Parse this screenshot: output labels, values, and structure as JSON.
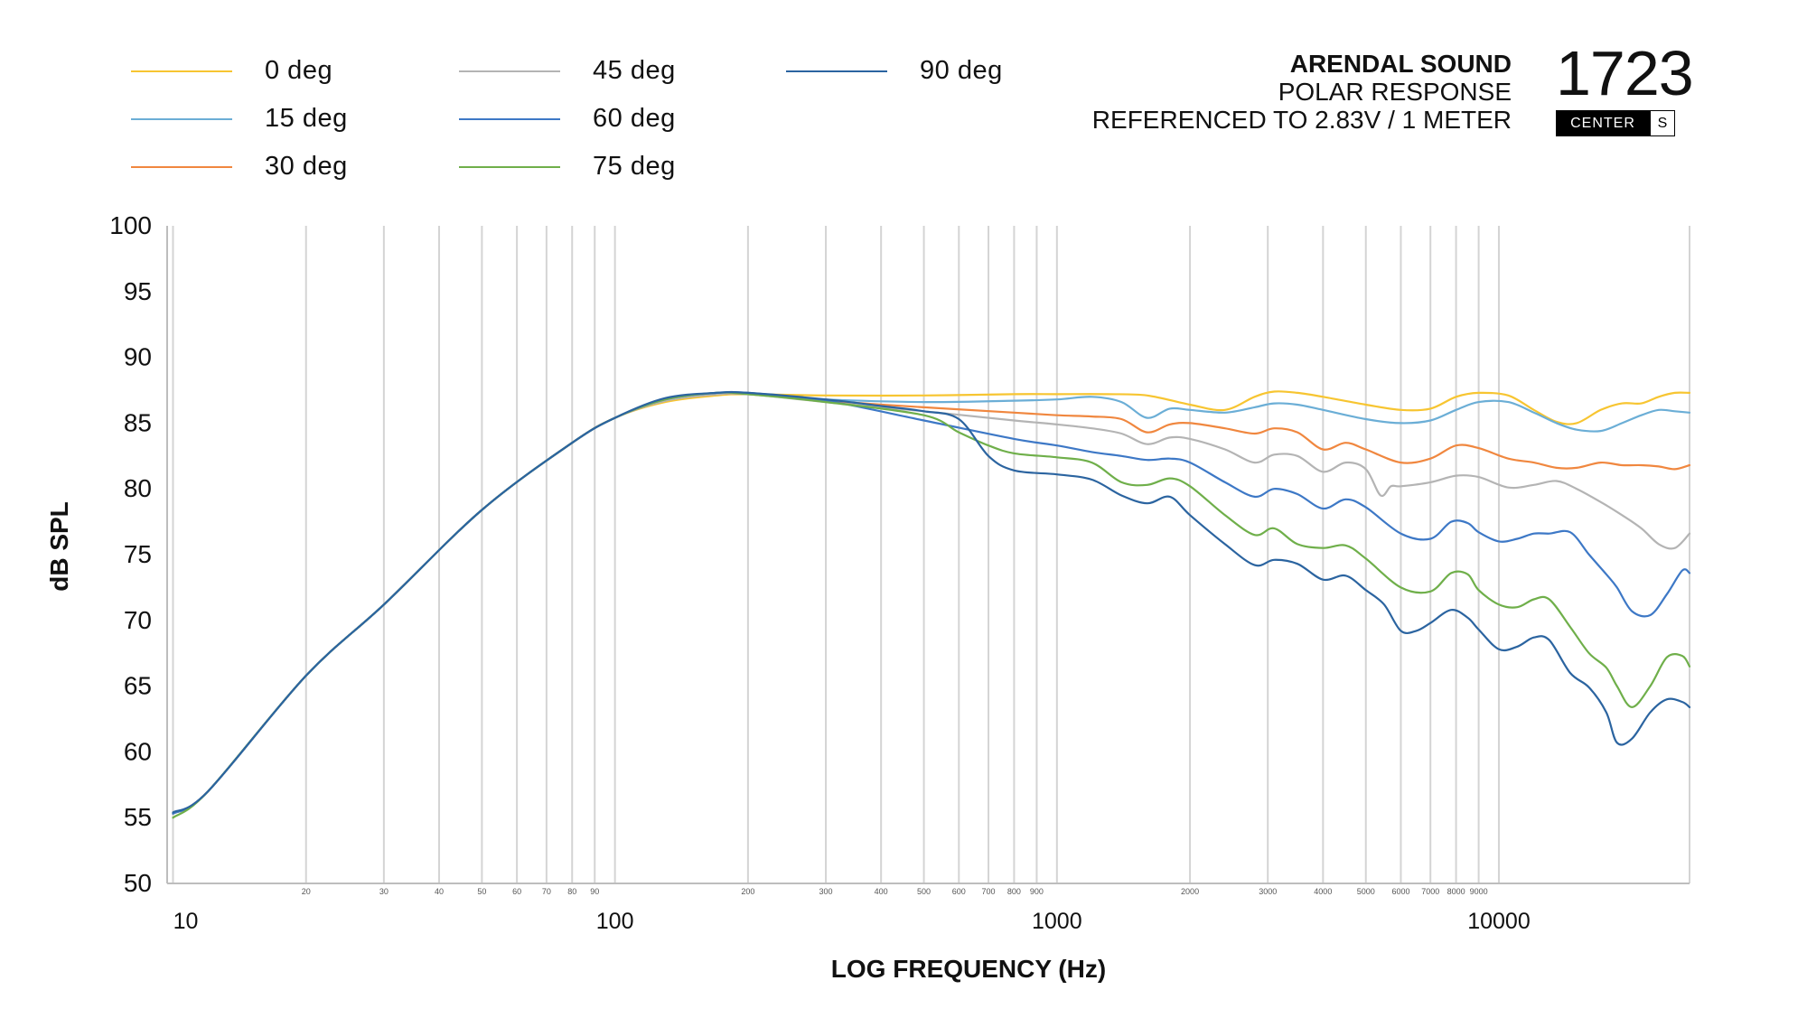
{
  "header": {
    "brand": "ARENDAL SOUND",
    "subtitle": "POLAR RESPONSE",
    "reference": "REFERENCED TO 2.83V / 1 METER",
    "logo_number": "1723",
    "logo_badge": "CENTER",
    "logo_badge_suffix": "S"
  },
  "chart_data": {
    "type": "line",
    "title": "POLAR RESPONSE",
    "xlabel": "LOG FREQUENCY (Hz)",
    "ylabel": "dB SPL",
    "xscale": "log",
    "xlim": [
      9.7,
      27000
    ],
    "ylim": [
      50,
      100
    ],
    "yticks": [
      50,
      55,
      60,
      65,
      70,
      75,
      80,
      85,
      90,
      95,
      100
    ],
    "xticks_major": [
      10,
      100,
      1000,
      10000
    ],
    "xticks_major_labels": [
      "10",
      "100",
      "1000",
      "10000"
    ],
    "xticks_minor": [
      20,
      30,
      40,
      50,
      60,
      70,
      80,
      90,
      200,
      300,
      400,
      500,
      600,
      700,
      800,
      900,
      2000,
      3000,
      4000,
      5000,
      6000,
      7000,
      8000,
      9000
    ],
    "xticks_minor_labels": [
      "20",
      "30",
      "40",
      "50",
      "60",
      "70",
      "80",
      "90",
      "200",
      "300",
      "400",
      "500",
      "600",
      "700",
      "800",
      "900",
      "2000",
      "3000",
      "4000",
      "5000",
      "6000",
      "7000",
      "8000",
      "9000"
    ],
    "grid": "vertical",
    "legend_position": "top-left",
    "series": [
      {
        "name": "0 deg",
        "color": "#F7C531",
        "x": [
          10,
          12,
          20,
          30,
          50,
          80,
          100,
          130,
          170,
          200,
          300,
          500,
          800,
          1000,
          1300,
          1600,
          2000,
          2400,
          2800,
          3100,
          3500,
          4000,
          5000,
          6000,
          7000,
          8000,
          9000,
          10500,
          12000,
          13500,
          15000,
          17000,
          19000,
          21000,
          23000,
          25000,
          27000
        ],
        "y": [
          55.3,
          57.0,
          65.8,
          71.2,
          78.4,
          83.5,
          85.4,
          86.6,
          87.1,
          87.2,
          87.1,
          87.1,
          87.2,
          87.2,
          87.2,
          87.1,
          86.4,
          86.0,
          87.0,
          87.4,
          87.3,
          87.0,
          86.4,
          86.0,
          86.1,
          87.0,
          87.3,
          87.1,
          86.0,
          85.1,
          85.0,
          86.0,
          86.5,
          86.5,
          87.0,
          87.3,
          87.3
        ]
      },
      {
        "name": "15 deg",
        "color": "#6BAED6",
        "x": [
          10,
          12,
          20,
          30,
          50,
          80,
          100,
          130,
          170,
          200,
          300,
          500,
          800,
          1000,
          1200,
          1400,
          1600,
          1800,
          2000,
          2400,
          2800,
          3100,
          3500,
          4000,
          5000,
          6000,
          7000,
          8000,
          9000,
          10500,
          12000,
          13500,
          15000,
          17000,
          19000,
          21000,
          23000,
          25000,
          27000
        ],
        "y": [
          55.3,
          57.0,
          65.8,
          71.2,
          78.4,
          83.5,
          85.4,
          86.7,
          87.2,
          87.2,
          86.8,
          86.6,
          86.7,
          86.8,
          87.0,
          86.6,
          85.4,
          86.1,
          86.0,
          85.8,
          86.2,
          86.5,
          86.4,
          86.0,
          85.3,
          85.0,
          85.2,
          86.0,
          86.6,
          86.6,
          85.8,
          85.0,
          84.5,
          84.4,
          85.0,
          85.6,
          86.0,
          85.9,
          85.8
        ]
      },
      {
        "name": "30 deg",
        "color": "#F0873F",
        "x": [
          10,
          12,
          20,
          30,
          50,
          80,
          100,
          130,
          170,
          200,
          300,
          500,
          800,
          1000,
          1200,
          1400,
          1600,
          1800,
          2000,
          2400,
          2800,
          3100,
          3500,
          4000,
          4500,
          5000,
          6000,
          7000,
          8000,
          9000,
          10500,
          12000,
          13500,
          15000,
          17000,
          19000,
          21000,
          23000,
          25000,
          27000
        ],
        "y": [
          55.3,
          57.0,
          65.8,
          71.2,
          78.4,
          83.5,
          85.4,
          86.7,
          87.2,
          87.2,
          86.7,
          86.2,
          85.8,
          85.6,
          85.5,
          85.3,
          84.3,
          84.9,
          85.0,
          84.6,
          84.2,
          84.6,
          84.3,
          83.0,
          83.5,
          83.0,
          82.0,
          82.3,
          83.3,
          83.1,
          82.3,
          82.0,
          81.6,
          81.6,
          82.0,
          81.8,
          81.8,
          81.7,
          81.5,
          81.8
        ]
      },
      {
        "name": "45 deg",
        "color": "#B4B4B4",
        "x": [
          10,
          12,
          20,
          30,
          50,
          80,
          100,
          130,
          170,
          200,
          300,
          500,
          800,
          1000,
          1200,
          1400,
          1600,
          1800,
          2000,
          2400,
          2800,
          3100,
          3500,
          4000,
          4500,
          5000,
          5400,
          5700,
          6000,
          7000,
          8000,
          9000,
          10500,
          12000,
          13500,
          15000,
          17000,
          19000,
          21000,
          23000,
          25000,
          27000
        ],
        "y": [
          55.3,
          57.0,
          65.8,
          71.2,
          78.4,
          83.5,
          85.4,
          86.7,
          87.2,
          87.2,
          86.6,
          85.9,
          85.2,
          84.9,
          84.6,
          84.2,
          83.4,
          83.9,
          83.8,
          83.0,
          82.0,
          82.6,
          82.5,
          81.3,
          82.0,
          81.5,
          79.5,
          80.2,
          80.2,
          80.5,
          81.0,
          80.9,
          80.1,
          80.3,
          80.6,
          80.0,
          79.0,
          78.0,
          77.0,
          75.8,
          75.5,
          76.6
        ]
      },
      {
        "name": "60 deg",
        "color": "#3D78C6",
        "x": [
          10,
          12,
          20,
          30,
          50,
          80,
          100,
          130,
          170,
          200,
          300,
          500,
          800,
          1000,
          1200,
          1400,
          1600,
          1800,
          2000,
          2400,
          2800,
          3100,
          3500,
          4000,
          4500,
          5000,
          6000,
          7000,
          7800,
          8500,
          9000,
          10000,
          11000,
          12000,
          13000,
          14500,
          16000,
          17500,
          18500,
          20000,
          22000,
          24000,
          26000,
          27000
        ],
        "y": [
          55.3,
          57.0,
          65.8,
          71.2,
          78.4,
          83.5,
          85.4,
          86.8,
          87.3,
          87.3,
          86.7,
          85.2,
          83.8,
          83.3,
          82.8,
          82.5,
          82.2,
          82.3,
          82.0,
          80.5,
          79.4,
          80.0,
          79.6,
          78.5,
          79.2,
          78.6,
          76.6,
          76.2,
          77.5,
          77.4,
          76.7,
          76.0,
          76.2,
          76.6,
          76.6,
          76.7,
          75.0,
          73.5,
          72.5,
          70.7,
          70.4,
          72.0,
          73.8,
          73.6
        ]
      },
      {
        "name": "75 deg",
        "color": "#6FAF4A",
        "x": [
          10,
          12,
          20,
          30,
          50,
          80,
          100,
          130,
          170,
          200,
          300,
          500,
          600,
          700,
          800,
          1000,
          1200,
          1400,
          1600,
          1800,
          2000,
          2400,
          2800,
          3100,
          3500,
          4000,
          4500,
          5000,
          6000,
          7000,
          7800,
          8500,
          9000,
          10000,
          11000,
          12000,
          13000,
          14500,
          16000,
          17500,
          18500,
          20000,
          22000,
          24000,
          26000,
          27000
        ],
        "y": [
          55.0,
          57.0,
          65.8,
          71.2,
          78.4,
          83.5,
          85.4,
          86.8,
          87.3,
          87.2,
          86.6,
          85.6,
          84.3,
          83.3,
          82.7,
          82.4,
          82.0,
          80.5,
          80.3,
          80.8,
          80.2,
          78.0,
          76.5,
          77.0,
          75.8,
          75.5,
          75.7,
          74.7,
          72.5,
          72.2,
          73.6,
          73.5,
          72.3,
          71.2,
          71.0,
          71.6,
          71.6,
          69.5,
          67.5,
          66.4,
          65.0,
          63.4,
          65.0,
          67.2,
          67.3,
          66.5
        ]
      },
      {
        "name": "90 deg",
        "color": "#2B64A0",
        "x": [
          10,
          12,
          20,
          30,
          50,
          80,
          100,
          130,
          170,
          200,
          300,
          400,
          500,
          600,
          700,
          800,
          1000,
          1200,
          1400,
          1600,
          1800,
          2000,
          2400,
          2800,
          3100,
          3500,
          4000,
          4500,
          5000,
          5500,
          6000,
          6500,
          7000,
          7800,
          8500,
          9000,
          10000,
          11000,
          12000,
          13000,
          14500,
          16000,
          17500,
          18500,
          20000,
          22000,
          24000,
          26000,
          27000
        ],
        "y": [
          55.4,
          57.0,
          65.8,
          71.2,
          78.4,
          83.5,
          85.4,
          86.9,
          87.3,
          87.3,
          86.8,
          86.3,
          85.9,
          85.3,
          82.5,
          81.4,
          81.1,
          80.7,
          79.5,
          78.9,
          79.4,
          78.0,
          75.8,
          74.2,
          74.6,
          74.3,
          73.1,
          73.4,
          72.3,
          71.2,
          69.2,
          69.2,
          69.8,
          70.8,
          70.2,
          69.3,
          67.8,
          68.0,
          68.7,
          68.5,
          66.0,
          64.9,
          63.0,
          60.7,
          61.0,
          63.0,
          64.0,
          63.8,
          63.4
        ]
      }
    ]
  }
}
